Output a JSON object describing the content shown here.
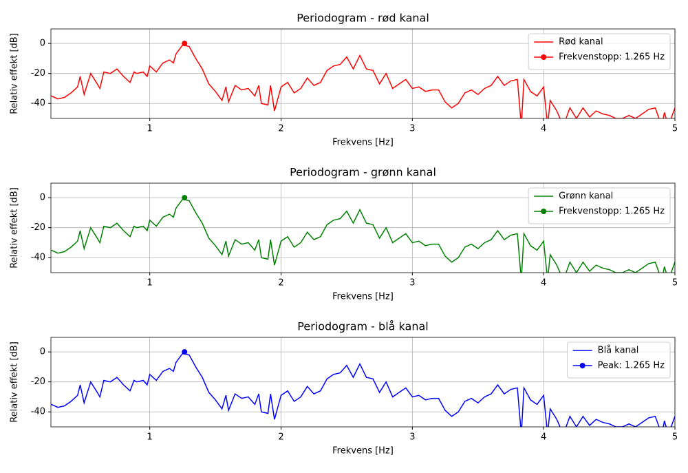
{
  "chart_data": [
    {
      "type": "line",
      "title": "Periodogram - rød kanal",
      "xlabel": "Frekvens [Hz]",
      "ylabel": "Relativ effekt [dB]",
      "x": [
        0.25,
        0.3,
        0.35,
        0.4,
        0.45,
        0.47,
        0.5,
        0.55,
        0.6,
        0.62,
        0.65,
        0.7,
        0.75,
        0.8,
        0.85,
        0.88,
        0.9,
        0.95,
        0.98,
        1.0,
        1.05,
        1.1,
        1.15,
        1.18,
        1.2,
        1.25,
        1.3,
        1.35,
        1.4,
        1.45,
        1.5,
        1.55,
        1.58,
        1.6,
        1.65,
        1.7,
        1.75,
        1.8,
        1.83,
        1.85,
        1.9,
        1.92,
        1.95,
        2.0,
        2.05,
        2.1,
        2.15,
        2.2,
        2.25,
        2.3,
        2.35,
        2.4,
        2.45,
        2.5,
        2.55,
        2.6,
        2.65,
        2.7,
        2.75,
        2.8,
        2.85,
        2.9,
        2.95,
        3.0,
        3.05,
        3.1,
        3.15,
        3.2,
        3.25,
        3.3,
        3.35,
        3.4,
        3.45,
        3.5,
        3.55,
        3.6,
        3.65,
        3.7,
        3.75,
        3.8,
        3.83,
        3.85,
        3.9,
        3.95,
        4.0,
        4.03,
        4.05,
        4.1,
        4.15,
        4.2,
        4.25,
        4.3,
        4.35,
        4.4,
        4.45,
        4.5,
        4.55,
        4.6,
        4.65,
        4.7,
        4.75,
        4.8,
        4.85,
        4.9,
        4.92,
        4.95,
        5.0
      ],
      "series": [
        {
          "name": "Rød kanal",
          "color": "#ff0000",
          "values": [
            -35,
            -37,
            -36,
            -33,
            -29,
            -22,
            -34,
            -20,
            -27,
            -30,
            -19,
            -20,
            -17,
            -22,
            -26,
            -19,
            -20,
            -19,
            -22,
            -15,
            -19,
            -13,
            -11,
            -13,
            -7,
            -1,
            -2,
            -10,
            -17,
            -27,
            -32,
            -38,
            -29,
            -39,
            -28,
            -31,
            -30,
            -35,
            -28,
            -40,
            -41,
            -28,
            -45,
            -29,
            -26,
            -33,
            -30,
            -23,
            -28,
            -26,
            -18,
            -15,
            -14,
            -9,
            -17,
            -8,
            -17,
            -18,
            -27,
            -20,
            -30,
            -27,
            -24,
            -30,
            -29,
            -32,
            -31,
            -31,
            -39,
            -43,
            -40,
            -33,
            -31,
            -34,
            -30,
            -28,
            -22,
            -28,
            -25,
            -24,
            -55,
            -24,
            -32,
            -35,
            -29,
            -55,
            -38,
            -45,
            -55,
            -43,
            -50,
            -43,
            -49,
            -45,
            -47,
            -48,
            -50,
            -50,
            -48,
            -50,
            -47,
            -44,
            -43,
            -55,
            -46,
            -55,
            -43
          ]
        },
        {
          "name": "Frekvenstopp: 1.265 Hz",
          "color": "#ff0000",
          "x": [
            1.265
          ],
          "values": [
            0
          ],
          "marker": "o"
        }
      ],
      "xlim": [
        0.247,
        5
      ],
      "ylim": [
        -50,
        9.7
      ],
      "xticks": [
        1,
        2,
        3,
        4,
        5
      ],
      "yticks": [
        -40,
        -20,
        0
      ],
      "grid": true,
      "legend": "upper right"
    },
    {
      "type": "line",
      "title": "Periodogram - grønn kanal",
      "xlabel": "Frekvens [Hz]",
      "ylabel": "Relativ effekt [dB]",
      "x": [
        0.25,
        0.3,
        0.35,
        0.4,
        0.45,
        0.47,
        0.5,
        0.55,
        0.6,
        0.62,
        0.65,
        0.7,
        0.75,
        0.8,
        0.85,
        0.88,
        0.9,
        0.95,
        0.98,
        1.0,
        1.05,
        1.1,
        1.15,
        1.18,
        1.2,
        1.25,
        1.3,
        1.35,
        1.4,
        1.45,
        1.5,
        1.55,
        1.58,
        1.6,
        1.65,
        1.7,
        1.75,
        1.8,
        1.83,
        1.85,
        1.9,
        1.92,
        1.95,
        2.0,
        2.05,
        2.1,
        2.15,
        2.2,
        2.25,
        2.3,
        2.35,
        2.4,
        2.45,
        2.5,
        2.55,
        2.6,
        2.65,
        2.7,
        2.75,
        2.8,
        2.85,
        2.9,
        2.95,
        3.0,
        3.05,
        3.1,
        3.15,
        3.2,
        3.25,
        3.3,
        3.35,
        3.4,
        3.45,
        3.5,
        3.55,
        3.6,
        3.65,
        3.7,
        3.75,
        3.8,
        3.83,
        3.85,
        3.9,
        3.95,
        4.0,
        4.03,
        4.05,
        4.1,
        4.15,
        4.2,
        4.25,
        4.3,
        4.35,
        4.4,
        4.45,
        4.5,
        4.55,
        4.6,
        4.65,
        4.7,
        4.75,
        4.8,
        4.85,
        4.9,
        4.92,
        4.95,
        5.0
      ],
      "series": [
        {
          "name": "Grønn kanal",
          "color": "#008000",
          "values": [
            -35,
            -37,
            -36,
            -33,
            -29,
            -22,
            -34,
            -20,
            -27,
            -30,
            -19,
            -20,
            -17,
            -22,
            -26,
            -19,
            -20,
            -19,
            -22,
            -15,
            -19,
            -13,
            -11,
            -13,
            -7,
            -1,
            -2,
            -10,
            -17,
            -27,
            -32,
            -38,
            -29,
            -39,
            -28,
            -31,
            -30,
            -35,
            -28,
            -40,
            -41,
            -28,
            -45,
            -29,
            -26,
            -33,
            -30,
            -23,
            -28,
            -26,
            -18,
            -15,
            -14,
            -9,
            -17,
            -8,
            -17,
            -18,
            -27,
            -20,
            -30,
            -27,
            -24,
            -30,
            -29,
            -32,
            -31,
            -31,
            -39,
            -43,
            -40,
            -33,
            -31,
            -34,
            -30,
            -28,
            -22,
            -28,
            -25,
            -24,
            -55,
            -24,
            -32,
            -35,
            -29,
            -55,
            -38,
            -45,
            -55,
            -43,
            -50,
            -43,
            -49,
            -45,
            -47,
            -48,
            -50,
            -50,
            -48,
            -50,
            -47,
            -44,
            -43,
            -55,
            -46,
            -55,
            -43
          ]
        },
        {
          "name": "Frekvenstopp: 1.265 Hz",
          "color": "#008000",
          "x": [
            1.265
          ],
          "values": [
            0
          ],
          "marker": "o"
        }
      ],
      "xlim": [
        0.247,
        5
      ],
      "ylim": [
        -50,
        9.7
      ],
      "xticks": [
        1,
        2,
        3,
        4,
        5
      ],
      "yticks": [
        -40,
        -20,
        0
      ],
      "grid": true,
      "legend": "upper right"
    },
    {
      "type": "line",
      "title": "Periodogram - blå kanal",
      "xlabel": "Frekvens [Hz]",
      "ylabel": "Relativ effekt [dB]",
      "x": [
        0.25,
        0.3,
        0.35,
        0.4,
        0.45,
        0.47,
        0.5,
        0.55,
        0.6,
        0.62,
        0.65,
        0.7,
        0.75,
        0.8,
        0.85,
        0.88,
        0.9,
        0.95,
        0.98,
        1.0,
        1.05,
        1.1,
        1.15,
        1.18,
        1.2,
        1.25,
        1.3,
        1.35,
        1.4,
        1.45,
        1.5,
        1.55,
        1.58,
        1.6,
        1.65,
        1.7,
        1.75,
        1.8,
        1.83,
        1.85,
        1.9,
        1.92,
        1.95,
        2.0,
        2.05,
        2.1,
        2.15,
        2.2,
        2.25,
        2.3,
        2.35,
        2.4,
        2.45,
        2.5,
        2.55,
        2.6,
        2.65,
        2.7,
        2.75,
        2.8,
        2.85,
        2.9,
        2.95,
        3.0,
        3.05,
        3.1,
        3.15,
        3.2,
        3.25,
        3.3,
        3.35,
        3.4,
        3.45,
        3.5,
        3.55,
        3.6,
        3.65,
        3.7,
        3.75,
        3.8,
        3.83,
        3.85,
        3.9,
        3.95,
        4.0,
        4.03,
        4.05,
        4.1,
        4.15,
        4.2,
        4.25,
        4.3,
        4.35,
        4.4,
        4.45,
        4.5,
        4.55,
        4.6,
        4.65,
        4.7,
        4.75,
        4.8,
        4.85,
        4.9,
        4.92,
        4.95,
        5.0
      ],
      "series": [
        {
          "name": "Blå kanal",
          "color": "#0000ff",
          "values": [
            -35,
            -37,
            -36,
            -33,
            -29,
            -22,
            -34,
            -20,
            -27,
            -30,
            -19,
            -20,
            -17,
            -22,
            -26,
            -19,
            -20,
            -19,
            -22,
            -15,
            -19,
            -13,
            -11,
            -13,
            -7,
            -1,
            -2,
            -10,
            -17,
            -27,
            -32,
            -38,
            -29,
            -39,
            -28,
            -31,
            -30,
            -35,
            -28,
            -40,
            -41,
            -28,
            -45,
            -29,
            -26,
            -33,
            -30,
            -23,
            -28,
            -26,
            -18,
            -15,
            -14,
            -9,
            -17,
            -8,
            -17,
            -18,
            -27,
            -20,
            -30,
            -27,
            -24,
            -30,
            -29,
            -32,
            -31,
            -31,
            -39,
            -43,
            -40,
            -33,
            -31,
            -34,
            -30,
            -28,
            -22,
            -28,
            -25,
            -24,
            -55,
            -24,
            -32,
            -35,
            -29,
            -55,
            -38,
            -45,
            -55,
            -43,
            -50,
            -43,
            -49,
            -45,
            -47,
            -48,
            -50,
            -50,
            -48,
            -50,
            -47,
            -44,
            -43,
            -55,
            -46,
            -55,
            -43
          ]
        },
        {
          "name": "Peak: 1.265 Hz",
          "color": "#0000ff",
          "x": [
            1.265
          ],
          "values": [
            0
          ],
          "marker": "o"
        }
      ],
      "xlim": [
        0.247,
        5
      ],
      "ylim": [
        -50,
        9.7
      ],
      "xticks": [
        1,
        2,
        3,
        4,
        5
      ],
      "yticks": [
        -40,
        -20,
        0
      ],
      "grid": true,
      "legend": "upper right"
    }
  ]
}
